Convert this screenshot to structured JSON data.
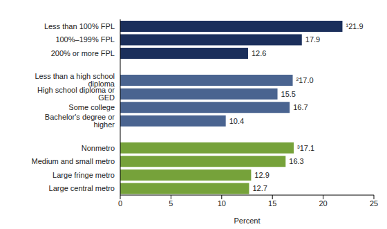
{
  "chart_data": {
    "type": "bar",
    "orientation": "horizontal",
    "categories": [
      "Less than 100% FPL",
      "100%–199% FPL",
      "200% or more FPL",
      null,
      "Less than a high school diploma",
      "High school diploma or GED",
      "Some college",
      "Bachelor's degree or higher",
      null,
      "Nonmetro",
      "Medium and small metro",
      "Large fringe metro",
      "Large central metro"
    ],
    "values": [
      21.9,
      17.9,
      12.6,
      null,
      17.0,
      15.5,
      16.7,
      10.4,
      null,
      17.1,
      16.3,
      12.9,
      12.7
    ],
    "value_labels": [
      "¹21.9",
      "17.9",
      "12.6",
      null,
      "²17.0",
      "15.5",
      "16.7",
      "10.4",
      null,
      "³17.1",
      "16.3",
      "12.9",
      "12.7"
    ],
    "colors": [
      "#1b2f5b",
      "#1b2f5b",
      "#1b2f5b",
      null,
      "#4a6490",
      "#4a6490",
      "#4a6490",
      "#4a6490",
      null,
      "#76a23a",
      "#76a23a",
      "#76a23a",
      "#76a23a"
    ],
    "data_labels": true,
    "xlabel": "Percent",
    "xlim": [
      0,
      25
    ],
    "xticks": [
      0,
      5,
      10,
      15,
      20,
      25
    ],
    "grid": false
  }
}
